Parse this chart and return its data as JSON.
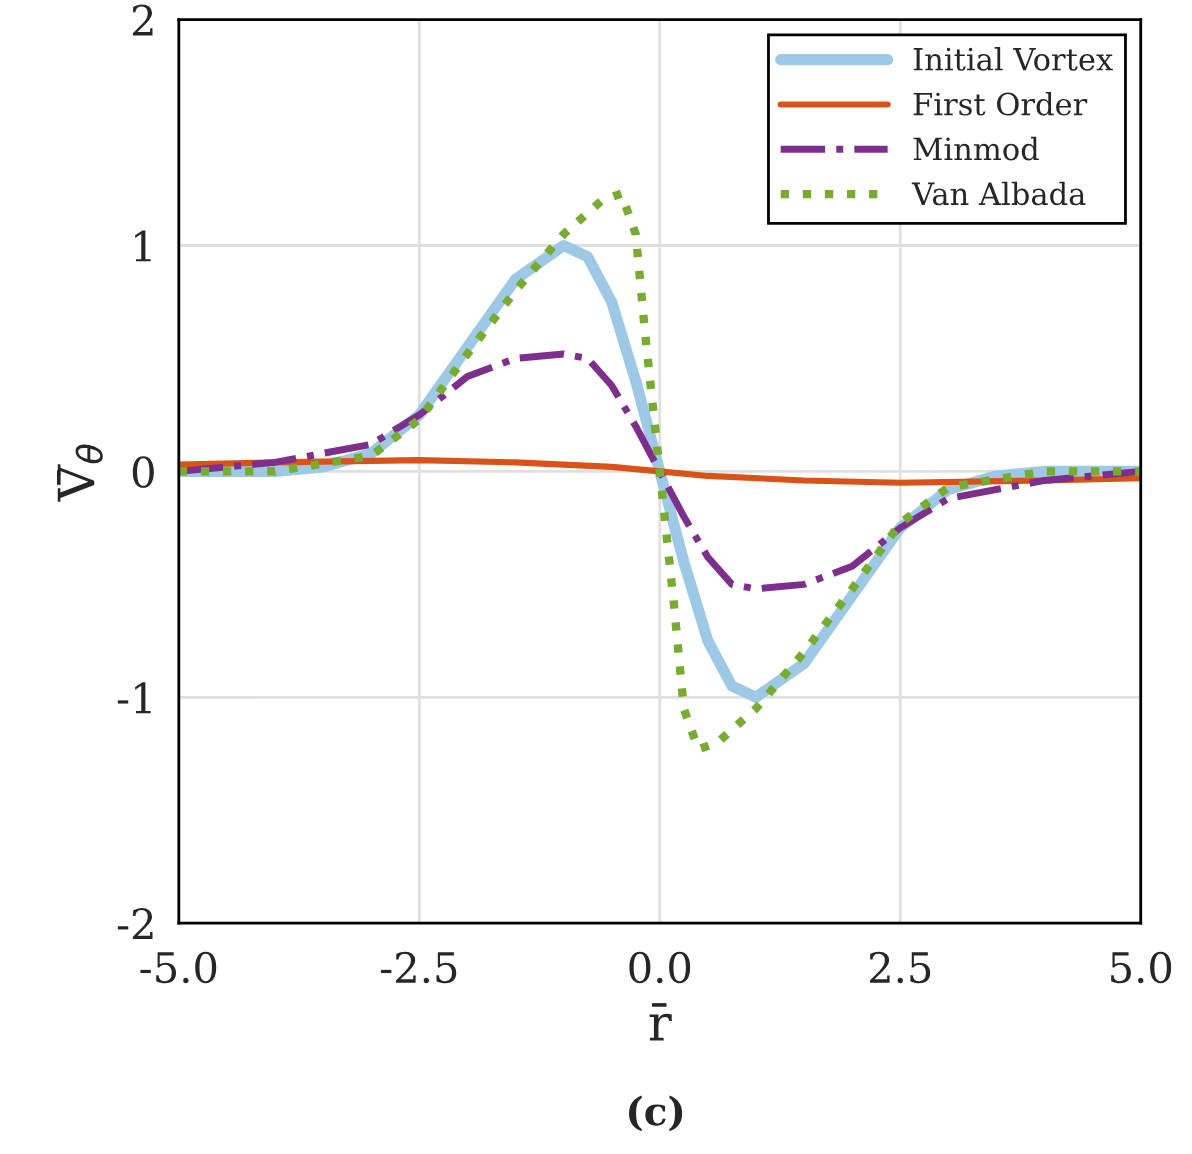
{
  "chart_data": {
    "type": "line",
    "xlabel": "r̄",
    "ylabel": "V̄$_{θ}$",
    "annotations": [
      "(c)"
    ],
    "xlim": [
      -5,
      5
    ],
    "ylim": [
      -2,
      2
    ],
    "xticks": [
      {
        "value": -5,
        "label": "-5.0"
      },
      {
        "value": -2.5,
        "label": "-2.5"
      },
      {
        "value": 0,
        "label": "0.0"
      },
      {
        "value": 2.5,
        "label": "2.5"
      },
      {
        "value": 5,
        "label": "5.0"
      }
    ],
    "yticks": [
      -2,
      -1,
      0,
      1,
      2
    ],
    "grid": true,
    "legend": "top right",
    "series": [
      {
        "name": "Initial Vortex",
        "color": "#9dc9e6",
        "line_style": "solid",
        "x": [
          -5,
          -4,
          -3.5,
          -3,
          -2.5,
          -2,
          -1.5,
          -1,
          -0.75,
          -0.5,
          -0.25,
          0,
          0.25,
          0.5,
          0.75,
          1,
          1.5,
          2,
          2.5,
          3,
          3.5,
          4,
          5
        ],
        "values": [
          0,
          0,
          0.02,
          0.08,
          0.25,
          0.55,
          0.85,
          1.0,
          0.95,
          0.75,
          0.4,
          0,
          -0.4,
          -0.75,
          -0.95,
          -1.0,
          -0.85,
          -0.55,
          -0.25,
          -0.08,
          -0.02,
          0,
          0
        ]
      },
      {
        "name": "First Order",
        "color": "#d95319",
        "line_style": "solid",
        "x": [
          -5,
          -4,
          -2.5,
          -1.5,
          -0.5,
          0,
          0.5,
          1.5,
          2.5,
          4,
          5
        ],
        "values": [
          0.03,
          0.04,
          0.05,
          0.04,
          0.02,
          0,
          -0.02,
          -0.04,
          -0.05,
          -0.04,
          -0.03
        ]
      },
      {
        "name": "Minmod",
        "color": "#7e2f8e",
        "line_style": "dashdot",
        "x": [
          -5,
          -4,
          -3,
          -2.5,
          -2,
          -1.5,
          -1,
          -0.75,
          -0.5,
          -0.25,
          0,
          0.25,
          0.5,
          0.75,
          1,
          1.5,
          2,
          2.5,
          3,
          4,
          5
        ],
        "values": [
          0,
          0.04,
          0.12,
          0.25,
          0.42,
          0.5,
          0.52,
          0.5,
          0.38,
          0.2,
          0,
          -0.2,
          -0.38,
          -0.5,
          -0.52,
          -0.5,
          -0.42,
          -0.25,
          -0.12,
          -0.04,
          0
        ]
      },
      {
        "name": "Van Albada",
        "color": "#77ac30",
        "line_style": "dotted",
        "x": [
          -5,
          -4,
          -3,
          -2.5,
          -2,
          -1.5,
          -1,
          -0.6,
          -0.4,
          -0.25,
          -0.15,
          0,
          0.15,
          0.25,
          0.4,
          0.6,
          1,
          1.5,
          2,
          2.5,
          3,
          4,
          5
        ],
        "values": [
          0,
          0,
          0.07,
          0.23,
          0.52,
          0.8,
          1.05,
          1.2,
          1.23,
          1.05,
          0.6,
          0,
          -0.6,
          -1.05,
          -1.23,
          -1.2,
          -1.05,
          -0.8,
          -0.52,
          -0.23,
          -0.07,
          0,
          0
        ]
      }
    ]
  }
}
